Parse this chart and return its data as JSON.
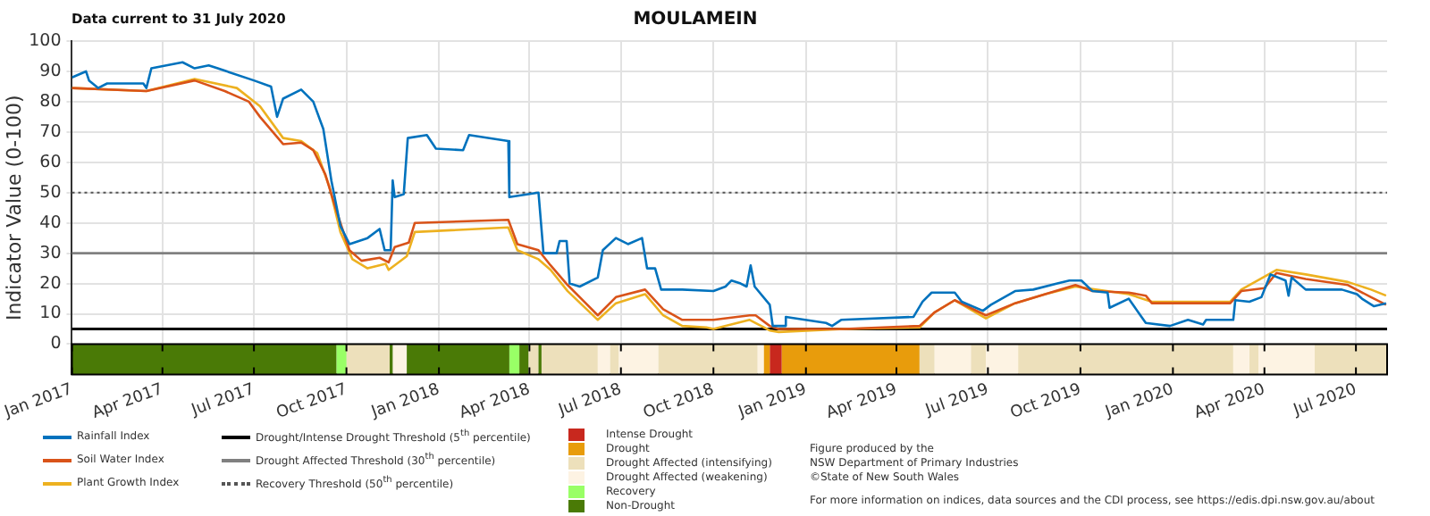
{
  "chart_data": {
    "type": "line",
    "title": "MOULAMEIN",
    "ylabel": "Indicator Value (0-100)",
    "xlim": [
      "2017-01-01",
      "2020-08-01"
    ],
    "xticks": [
      {
        "value": "2017-01-01",
        "label": "Jan 2017"
      },
      {
        "value": "2017-04-01",
        "label": "Apr 2017"
      },
      {
        "value": "2017-07-01",
        "label": "Jul 2017"
      },
      {
        "value": "2017-10-01",
        "label": "Oct 2017"
      },
      {
        "value": "2018-01-01",
        "label": "Jan 2018"
      },
      {
        "value": "2018-04-01",
        "label": "Apr 2018"
      },
      {
        "value": "2018-07-01",
        "label": "Jul 2018"
      },
      {
        "value": "2018-10-01",
        "label": "Oct 2018"
      },
      {
        "value": "2019-01-01",
        "label": "Jan 2019"
      },
      {
        "value": "2019-04-01",
        "label": "Apr 2019"
      },
      {
        "value": "2019-07-01",
        "label": "Jul 2019"
      },
      {
        "value": "2019-10-01",
        "label": "Oct 2019"
      },
      {
        "value": "2020-01-01",
        "label": "Jan 2020"
      },
      {
        "value": "2020-04-01",
        "label": "Apr 2020"
      },
      {
        "value": "2020-07-01",
        "label": "Jul 2020"
      }
    ],
    "ylim": [
      -10,
      100
    ],
    "yticks": [
      0,
      10,
      20,
      30,
      40,
      50,
      60,
      70,
      80,
      90,
      100
    ],
    "grid": true,
    "legend": "bottom",
    "series": [
      {
        "name": "Rainfall Index",
        "color": "#0072bd",
        "x": [
          "2017-01-01",
          "2017-01-15",
          "2017-01-18",
          "2017-01-27",
          "2017-02-05",
          "2017-03-13",
          "2017-03-16",
          "2017-03-21",
          "2017-04-21",
          "2017-05-03",
          "2017-05-17",
          "2017-05-26",
          "2017-07-01",
          "2017-07-18",
          "2017-07-24",
          "2017-07-30",
          "2017-08-17",
          "2017-08-29",
          "2017-09-08",
          "2017-09-16",
          "2017-09-25",
          "2017-10-04",
          "2017-10-22",
          "2017-11-03",
          "2017-11-08",
          "2017-11-14",
          "2017-11-16",
          "2017-11-18",
          "2017-11-27",
          "2017-12-01",
          "2017-12-20",
          "2017-12-29",
          "2018-01-25",
          "2018-01-31",
          "2018-03-11",
          "2018-03-12",
          "2018-04-10",
          "2018-04-15",
          "2018-04-28",
          "2018-05-01",
          "2018-05-08",
          "2018-05-11",
          "2018-05-21",
          "2018-06-08",
          "2018-06-13",
          "2018-06-26",
          "2018-07-08",
          "2018-07-22",
          "2018-07-27",
          "2018-08-04",
          "2018-08-10",
          "2018-08-31",
          "2018-10-01",
          "2018-10-13",
          "2018-10-19",
          "2018-10-28",
          "2018-11-03",
          "2018-11-07",
          "2018-11-11",
          "2018-11-26",
          "2018-11-29",
          "2018-12-11",
          "2018-12-12",
          "2019-01-21",
          "2019-01-27",
          "2019-02-05",
          "2019-04-18",
          "2019-04-27",
          "2019-05-06",
          "2019-05-29",
          "2019-06-05",
          "2019-06-26",
          "2019-07-04",
          "2019-07-28",
          "2019-08-15",
          "2019-09-08",
          "2019-09-20",
          "2019-10-02",
          "2019-10-13",
          "2019-10-28",
          "2019-10-30",
          "2019-11-18",
          "2019-12-05",
          "2019-12-29",
          "2020-01-16",
          "2020-01-31",
          "2020-02-03",
          "2020-03-01",
          "2020-03-03",
          "2020-03-17",
          "2020-03-29",
          "2020-04-07",
          "2020-04-22",
          "2020-04-25",
          "2020-04-28",
          "2020-05-12",
          "2020-06-17",
          "2020-07-02",
          "2020-07-07",
          "2020-07-19",
          "2020-07-31"
        ],
        "values": [
          88,
          90,
          87,
          84.5,
          86,
          86,
          84.5,
          91,
          93,
          91,
          92,
          91,
          87,
          85,
          75,
          81,
          84,
          80,
          71,
          54,
          39,
          33,
          35,
          38,
          31,
          31,
          54,
          48.5,
          49.5,
          68,
          69,
          64.5,
          64,
          69,
          67,
          48.5,
          50,
          30,
          30,
          34,
          34,
          20,
          19,
          22,
          31,
          35,
          33,
          35,
          25,
          25,
          18,
          18,
          17.5,
          19,
          21,
          20,
          19,
          26,
          19,
          13,
          6,
          6,
          9,
          7,
          6,
          8,
          9,
          14,
          17,
          17,
          14,
          11,
          13,
          17.5,
          18,
          20,
          21,
          21,
          17.5,
          17,
          12,
          15,
          7,
          6,
          8,
          6.5,
          8,
          8,
          14.5,
          14,
          15.5,
          23,
          21,
          16,
          22,
          18,
          18,
          16.5,
          15,
          12.5,
          13.5
        ]
      },
      {
        "name": "Soil Water Index",
        "color": "#d95319",
        "x": [
          "2017-01-01",
          "2017-03-16",
          "2017-05-03",
          "2017-06-02",
          "2017-06-26",
          "2017-07-07",
          "2017-07-30",
          "2017-08-17",
          "2017-08-29",
          "2017-09-10",
          "2017-09-22",
          "2017-10-04",
          "2017-10-16",
          "2017-11-03",
          "2017-11-12",
          "2017-11-18",
          "2017-12-02",
          "2017-12-08",
          "2018-03-11",
          "2018-03-20",
          "2018-04-10",
          "2018-04-22",
          "2018-05-09",
          "2018-05-27",
          "2018-06-08",
          "2018-06-26",
          "2018-07-25",
          "2018-08-12",
          "2018-08-31",
          "2018-10-01",
          "2018-11-06",
          "2018-11-12",
          "2018-11-26",
          "2018-12-05",
          "2019-02-08",
          "2019-04-24",
          "2019-05-09",
          "2019-05-29",
          "2019-06-29",
          "2019-07-28",
          "2019-08-27",
          "2019-09-26",
          "2019-10-13",
          "2019-11-18",
          "2019-12-05",
          "2019-12-11",
          "2020-02-27",
          "2020-03-09",
          "2020-04-01",
          "2020-04-13",
          "2020-05-12",
          "2020-06-23",
          "2020-07-16",
          "2020-07-31"
        ],
        "values": [
          84.5,
          83.5,
          87,
          83.5,
          80,
          75,
          66,
          66.5,
          64,
          56,
          43,
          31,
          27.5,
          28.5,
          27,
          32,
          33.5,
          40,
          41,
          33,
          31,
          26,
          19.5,
          13.5,
          9.5,
          15.5,
          18,
          11.5,
          8,
          8,
          9.5,
          9.5,
          6,
          5,
          5,
          6,
          10.5,
          14.5,
          9.5,
          13.5,
          16.5,
          19.5,
          17.5,
          17,
          16,
          13.5,
          13.5,
          17.5,
          18.5,
          23.5,
          21.5,
          19.5,
          15.5,
          13
        ]
      },
      {
        "name": "Plant Growth Index",
        "color": "#edb120",
        "x": [
          "2017-01-01",
          "2017-03-16",
          "2017-05-03",
          "2017-06-14",
          "2017-07-07",
          "2017-07-30",
          "2017-08-17",
          "2017-09-02",
          "2017-09-14",
          "2017-09-25",
          "2017-10-07",
          "2017-10-22",
          "2017-11-09",
          "2017-11-12",
          "2017-11-30",
          "2017-12-08",
          "2018-03-11",
          "2018-03-20",
          "2018-04-10",
          "2018-04-22",
          "2018-05-09",
          "2018-06-08",
          "2018-06-26",
          "2018-07-25",
          "2018-08-12",
          "2018-08-31",
          "2018-09-24",
          "2018-10-01",
          "2018-11-06",
          "2018-11-26",
          "2018-12-05",
          "2019-02-08",
          "2019-04-24",
          "2019-05-09",
          "2019-05-29",
          "2019-06-29",
          "2019-07-28",
          "2019-08-27",
          "2019-09-26",
          "2019-11-18",
          "2019-12-11",
          "2020-02-27",
          "2020-03-09",
          "2020-04-13",
          "2020-05-12",
          "2020-06-23",
          "2020-07-16",
          "2020-07-31"
        ],
        "values": [
          84.5,
          83.5,
          87.5,
          84.5,
          78.5,
          68,
          67,
          63,
          52,
          37,
          28,
          25,
          26.5,
          24.5,
          29,
          37,
          38.5,
          31,
          28,
          24.5,
          17.5,
          8,
          13.5,
          16.5,
          9.5,
          6,
          5.5,
          5,
          8,
          4.5,
          4,
          5,
          5.5,
          10.5,
          14.5,
          8.5,
          13.5,
          16.5,
          19,
          16.5,
          14,
          14,
          18,
          24.5,
          23,
          20.5,
          18,
          16
        ]
      }
    ],
    "ref_lines": [
      {
        "axis": "y",
        "value": 5,
        "label": "Drought/Intense Drought Threshold (5$^{th}$ percentile)",
        "color": "#000000",
        "line_style": "solid"
      },
      {
        "axis": "y",
        "value": 30,
        "label": "Drought Affected Threshold (30$^{th}$ percentile)",
        "color": "#808080",
        "line_style": "solid"
      },
      {
        "axis": "y",
        "value": 50,
        "label": "Recovery Threshold (50$^{th}$ percentile)",
        "color": "#555555",
        "line_style": "dotted"
      }
    ],
    "bands": [
      {
        "axis": "x",
        "from": "2018-11-26",
        "to": "2018-12-08",
        "label": "Intense Drought",
        "color": "#c8281e"
      },
      {
        "axis": "x",
        "from": "2018-11-20",
        "to": "2018-11-26",
        "label": "Drought",
        "color": "#e89c0c"
      },
      {
        "axis": "x",
        "from": "2018-12-08",
        "to": "2019-04-24",
        "color": "#e89c0c"
      },
      {
        "axis": "x",
        "from": "2017-10-01",
        "to": "2017-11-13",
        "label": "Drought Affected (intensifying)",
        "color": "#ede0bb"
      },
      {
        "axis": "x",
        "from": "2018-03-31",
        "to": "2018-04-10",
        "color": "#ede0bb"
      },
      {
        "axis": "x",
        "from": "2018-04-13",
        "to": "2018-06-08",
        "color": "#ede0bb"
      },
      {
        "axis": "x",
        "from": "2018-06-20",
        "to": "2018-06-29",
        "color": "#ede0bb"
      },
      {
        "axis": "x",
        "from": "2018-08-07",
        "to": "2018-11-14",
        "color": "#ede0bb"
      },
      {
        "axis": "x",
        "from": "2019-04-24",
        "to": "2019-05-09",
        "color": "#ede0bb"
      },
      {
        "axis": "x",
        "from": "2019-06-14",
        "to": "2019-06-29",
        "color": "#ede0bb"
      },
      {
        "axis": "x",
        "from": "2019-07-31",
        "to": "2020-03-01",
        "color": "#ede0bb"
      },
      {
        "axis": "x",
        "from": "2020-03-17",
        "to": "2020-03-26",
        "color": "#ede0bb"
      },
      {
        "axis": "x",
        "from": "2020-05-21",
        "to": "2020-08-01",
        "color": "#ede0bb"
      },
      {
        "axis": "x",
        "from": "2017-11-16",
        "to": "2017-11-30",
        "label": "Drought Affected (weakening)",
        "color": "#fdf3e3"
      },
      {
        "axis": "x",
        "from": "2018-06-08",
        "to": "2018-06-20",
        "color": "#fdf3e3"
      },
      {
        "axis": "x",
        "from": "2018-06-29",
        "to": "2018-08-07",
        "color": "#fdf3e3"
      },
      {
        "axis": "x",
        "from": "2018-11-14",
        "to": "2018-11-20",
        "color": "#fdf3e3"
      },
      {
        "axis": "x",
        "from": "2019-05-09",
        "to": "2019-06-14",
        "color": "#fdf3e3"
      },
      {
        "axis": "x",
        "from": "2019-06-29",
        "to": "2019-07-31",
        "color": "#fdf3e3"
      },
      {
        "axis": "x",
        "from": "2020-03-01",
        "to": "2020-03-17",
        "color": "#fdf3e3"
      },
      {
        "axis": "x",
        "from": "2020-03-26",
        "to": "2020-05-21",
        "color": "#fdf3e3"
      },
      {
        "axis": "x",
        "from": "2017-09-21",
        "to": "2017-10-01",
        "label": "Recovery",
        "color": "#99ff66"
      },
      {
        "axis": "x",
        "from": "2018-03-12",
        "to": "2018-03-22",
        "color": "#99ff66"
      },
      {
        "axis": "x",
        "from": "2017-01-01",
        "to": "2017-09-21",
        "label": "Non-Drought",
        "color": "#4a7a06"
      },
      {
        "axis": "x",
        "from": "2017-11-13",
        "to": "2017-11-16",
        "color": "#4a7a06"
      },
      {
        "axis": "x",
        "from": "2017-11-30",
        "to": "2018-03-12",
        "color": "#4a7a06"
      },
      {
        "axis": "x",
        "from": "2018-03-22",
        "to": "2018-03-31",
        "color": "#4a7a06"
      },
      {
        "axis": "x",
        "from": "2018-04-10",
        "to": "2018-04-13",
        "color": "#4a7a06"
      }
    ],
    "annotations": [
      "Data current to 31 July 2020",
      "Figure produced by the\nNSW Department of Primary Industries\n©State of New South Wales",
      "For more information on indices, data sources and the CDI process, see https://edis.dpi.nsw.gov.au/about"
    ]
  }
}
